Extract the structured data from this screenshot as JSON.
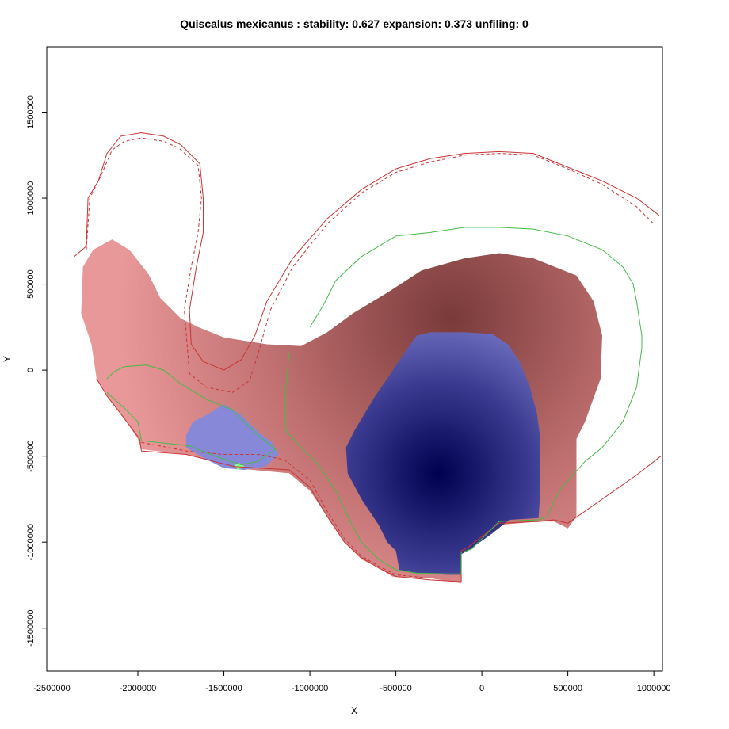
{
  "chart_data": {
    "type": "heatmap",
    "title": "Quiscalus mexicanus : stability: 0.627 expansion: 0.373 unfiling: 0",
    "xlabel": "X",
    "ylabel": "Y",
    "xlim": [
      -2530000,
      1050000
    ],
    "ylim": [
      -1750000,
      1880000
    ],
    "x_ticks": [
      -2500000,
      -2000000,
      -1500000,
      -1000000,
      -500000,
      0,
      500000,
      1000000
    ],
    "x_tick_labels": [
      "-2500000",
      "-2000000",
      "-1500000",
      "-1000000",
      "-500000",
      "0",
      "500000",
      "1000000"
    ],
    "y_ticks": [
      -1500000,
      -1000000,
      -500000,
      0,
      500000,
      1000000,
      1500000
    ],
    "y_tick_labels": [
      "-1500000",
      "-1000000",
      "-500000",
      "0",
      "500000",
      "1000000",
      "1500000"
    ],
    "grid": false,
    "colors": {
      "expansion_fill": "#e89898",
      "expansion_dark": "#7a3a3a",
      "stability_fill": "#8888d8",
      "stability_dark": "#000050",
      "unfilling_fill": "#88ff88",
      "native_contour": "#cc3333",
      "invasive_contour": "#44bb44"
    },
    "layers": {
      "expansion_region": [
        [
          -2240000,
          -50000
        ],
        [
          -2180000,
          -150000
        ],
        [
          -2080000,
          -280000
        ],
        [
          -2000000,
          -400000
        ],
        [
          -1980000,
          -460000
        ],
        [
          -1720000,
          -490000
        ],
        [
          -1520000,
          -540000
        ],
        [
          -1440000,
          -570000
        ],
        [
          -1120000,
          -600000
        ],
        [
          -1000000,
          -700000
        ],
        [
          -900000,
          -850000
        ],
        [
          -800000,
          -1000000
        ],
        [
          -700000,
          -1100000
        ],
        [
          -600000,
          -1150000
        ],
        [
          -520000,
          -1200000
        ],
        [
          -300000,
          -1210000
        ],
        [
          -120000,
          -1240000
        ],
        [
          -120000,
          -1050000
        ],
        [
          -60000,
          -1000000
        ],
        [
          100000,
          -900000
        ],
        [
          330000,
          -880000
        ],
        [
          420000,
          -880000
        ],
        [
          500000,
          -920000
        ],
        [
          550000,
          -850000
        ],
        [
          550000,
          -400000
        ],
        [
          600000,
          -300000
        ],
        [
          690000,
          -50000
        ],
        [
          700000,
          200000
        ],
        [
          650000,
          400000
        ],
        [
          550000,
          550000
        ],
        [
          300000,
          650000
        ],
        [
          100000,
          680000
        ],
        [
          -100000,
          650000
        ],
        [
          -350000,
          580000
        ],
        [
          -550000,
          450000
        ],
        [
          -750000,
          330000
        ],
        [
          -900000,
          220000
        ],
        [
          -1050000,
          140000
        ],
        [
          -1250000,
          150000
        ],
        [
          -1500000,
          190000
        ],
        [
          -1650000,
          250000
        ],
        [
          -1750000,
          300000
        ],
        [
          -1870000,
          420000
        ],
        [
          -1940000,
          560000
        ],
        [
          -2050000,
          700000
        ],
        [
          -2150000,
          760000
        ],
        [
          -2260000,
          700000
        ],
        [
          -2320000,
          600000
        ],
        [
          -2330000,
          330000
        ],
        [
          -2270000,
          150000
        ]
      ],
      "stability_main": [
        [
          -790000,
          -450000
        ],
        [
          -780000,
          -600000
        ],
        [
          -700000,
          -750000
        ],
        [
          -600000,
          -900000
        ],
        [
          -550000,
          -1000000
        ],
        [
          -500000,
          -1050000
        ],
        [
          -480000,
          -1160000
        ],
        [
          -400000,
          -1180000
        ],
        [
          -200000,
          -1190000
        ],
        [
          -120000,
          -1190000
        ],
        [
          -120000,
          -1070000
        ],
        [
          -80000,
          -1050000
        ],
        [
          60000,
          -950000
        ],
        [
          160000,
          -870000
        ],
        [
          330000,
          -860000
        ],
        [
          340000,
          -700000
        ],
        [
          340000,
          -400000
        ],
        [
          320000,
          -250000
        ],
        [
          280000,
          -100000
        ],
        [
          220000,
          50000
        ],
        [
          150000,
          150000
        ],
        [
          60000,
          210000
        ],
        [
          -100000,
          220000
        ],
        [
          -300000,
          220000
        ],
        [
          -380000,
          200000
        ],
        [
          -450000,
          100000
        ],
        [
          -550000,
          -50000
        ],
        [
          -620000,
          -150000
        ],
        [
          -680000,
          -250000
        ],
        [
          -740000,
          -350000
        ]
      ],
      "stability_small": [
        [
          -1720000,
          -380000
        ],
        [
          -1720000,
          -450000
        ],
        [
          -1600000,
          -520000
        ],
        [
          -1500000,
          -570000
        ],
        [
          -1380000,
          -580000
        ],
        [
          -1260000,
          -560000
        ],
        [
          -1180000,
          -490000
        ],
        [
          -1220000,
          -420000
        ],
        [
          -1300000,
          -360000
        ],
        [
          -1400000,
          -260000
        ],
        [
          -1500000,
          -200000
        ],
        [
          -1600000,
          -260000
        ],
        [
          -1680000,
          -300000
        ]
      ],
      "unfilling_small": [
        [
          -1440000,
          -550000
        ],
        [
          -1420000,
          -580000
        ],
        [
          -1380000,
          -560000
        ],
        [
          -1410000,
          -540000
        ]
      ],
      "native_contour_outer": [
        [
          -2370000,
          660000
        ],
        [
          -2300000,
          720000
        ],
        [
          -2290000,
          1000000
        ],
        [
          -2230000,
          1100000
        ],
        [
          -2180000,
          1260000
        ],
        [
          -2100000,
          1360000
        ],
        [
          -1980000,
          1380000
        ],
        [
          -1850000,
          1360000
        ],
        [
          -1750000,
          1310000
        ],
        [
          -1640000,
          1200000
        ],
        [
          -1620000,
          1000000
        ],
        [
          -1620000,
          800000
        ],
        [
          -1660000,
          600000
        ],
        [
          -1700000,
          350000
        ],
        [
          -1690000,
          150000
        ],
        [
          -1620000,
          50000
        ],
        [
          -1500000,
          0
        ],
        [
          -1400000,
          60000
        ],
        [
          -1320000,
          200000
        ],
        [
          -1250000,
          400000
        ],
        [
          -1100000,
          650000
        ],
        [
          -900000,
          880000
        ],
        [
          -700000,
          1050000
        ],
        [
          -500000,
          1170000
        ],
        [
          -300000,
          1230000
        ],
        [
          -100000,
          1260000
        ],
        [
          100000,
          1270000
        ],
        [
          300000,
          1260000
        ],
        [
          500000,
          1180000
        ],
        [
          700000,
          1100000
        ],
        [
          900000,
          1000000
        ],
        [
          1030000,
          900000
        ]
      ],
      "native_contour_inner_dashed": [
        [
          -2300000,
          700000
        ],
        [
          -2280000,
          1000000
        ],
        [
          -2220000,
          1120000
        ],
        [
          -2150000,
          1280000
        ],
        [
          -2080000,
          1330000
        ],
        [
          -1980000,
          1350000
        ],
        [
          -1850000,
          1330000
        ],
        [
          -1760000,
          1290000
        ],
        [
          -1650000,
          1190000
        ],
        [
          -1630000,
          1000000
        ],
        [
          -1650000,
          800000
        ],
        [
          -1690000,
          600000
        ],
        [
          -1730000,
          350000
        ],
        [
          -1700000,
          -20000
        ],
        [
          -1600000,
          -100000
        ],
        [
          -1450000,
          -130000
        ],
        [
          -1350000,
          -60000
        ],
        [
          -1300000,
          100000
        ],
        [
          -1230000,
          350000
        ],
        [
          -1100000,
          600000
        ],
        [
          -900000,
          850000
        ],
        [
          -700000,
          1030000
        ],
        [
          -500000,
          1150000
        ],
        [
          -300000,
          1210000
        ],
        [
          -100000,
          1250000
        ],
        [
          100000,
          1260000
        ],
        [
          300000,
          1250000
        ],
        [
          500000,
          1170000
        ],
        [
          700000,
          1080000
        ],
        [
          900000,
          950000
        ],
        [
          1000000,
          850000
        ]
      ],
      "native_contour_lower": [
        [
          -2240000,
          -50000
        ],
        [
          -2180000,
          -150000
        ],
        [
          -2080000,
          -280000
        ],
        [
          -1990000,
          -400000
        ],
        [
          -1980000,
          -470000
        ],
        [
          -1720000,
          -490000
        ],
        [
          -1520000,
          -540000
        ],
        [
          -1440000,
          -560000
        ],
        [
          -1120000,
          -580000
        ],
        [
          -1000000,
          -680000
        ],
        [
          -900000,
          -850000
        ],
        [
          -800000,
          -1000000
        ],
        [
          -700000,
          -1090000
        ],
        [
          -600000,
          -1150000
        ],
        [
          -500000,
          -1200000
        ],
        [
          -300000,
          -1220000
        ],
        [
          -120000,
          -1230000
        ],
        [
          -120000,
          -1050000
        ],
        [
          -80000,
          -1030000
        ],
        [
          100000,
          -890000
        ],
        [
          330000,
          -880000
        ],
        [
          420000,
          -870000
        ],
        [
          500000,
          -890000
        ],
        [
          700000,
          -750000
        ],
        [
          900000,
          -610000
        ],
        [
          1040000,
          -500000
        ]
      ],
      "native_contour_lower_dashed": [
        [
          -1980000,
          -420000
        ],
        [
          -1720000,
          -470000
        ],
        [
          -1500000,
          -490000
        ],
        [
          -1300000,
          -490000
        ],
        [
          -1150000,
          -520000
        ],
        [
          -1000000,
          -640000
        ],
        [
          -900000,
          -820000
        ],
        [
          -800000,
          -980000
        ],
        [
          -700000,
          -1080000
        ],
        [
          -600000,
          -1140000
        ],
        [
          -500000,
          -1190000
        ],
        [
          -300000,
          -1210000
        ]
      ],
      "invasive_contour_outer": [
        [
          -1120000,
          100000
        ],
        [
          -1140000,
          -100000
        ],
        [
          -1140000,
          -350000
        ],
        [
          -1050000,
          -450000
        ],
        [
          -950000,
          -550000
        ],
        [
          -850000,
          -700000
        ],
        [
          -780000,
          -850000
        ],
        [
          -700000,
          -1000000
        ],
        [
          -600000,
          -1100000
        ],
        [
          -500000,
          -1160000
        ],
        [
          -380000,
          -1180000
        ],
        [
          -200000,
          -1185000
        ],
        [
          -120000,
          -1185000
        ],
        [
          -120000,
          -1060000
        ],
        [
          -60000,
          -1040000
        ],
        [
          100000,
          -880000
        ],
        [
          330000,
          -870000
        ],
        [
          380000,
          -850000
        ],
        [
          450000,
          -700000
        ],
        [
          600000,
          -530000
        ],
        [
          700000,
          -450000
        ],
        [
          820000,
          -300000
        ],
        [
          900000,
          -100000
        ],
        [
          930000,
          130000
        ],
        [
          930000,
          200000
        ],
        [
          900000,
          400000
        ],
        [
          880000,
          500000
        ],
        [
          820000,
          600000
        ],
        [
          700000,
          700000
        ],
        [
          500000,
          780000
        ],
        [
          300000,
          820000
        ],
        [
          100000,
          830000
        ],
        [
          -100000,
          830000
        ],
        [
          -300000,
          800000
        ],
        [
          -500000,
          780000
        ],
        [
          -700000,
          660000
        ],
        [
          -850000,
          520000
        ],
        [
          -920000,
          380000
        ],
        [
          -1000000,
          250000
        ]
      ],
      "invasive_contour_small": [
        [
          -2180000,
          -50000
        ],
        [
          -2140000,
          -10000
        ],
        [
          -2080000,
          20000
        ],
        [
          -1950000,
          30000
        ],
        [
          -1850000,
          0
        ],
        [
          -1750000,
          -80000
        ],
        [
          -1600000,
          -170000
        ],
        [
          -1450000,
          -230000
        ],
        [
          -1300000,
          -380000
        ],
        [
          -1200000,
          -460000
        ],
        [
          -1300000,
          -530000
        ],
        [
          -1400000,
          -550000
        ],
        [
          -1550000,
          -500000
        ],
        [
          -1700000,
          -440000
        ],
        [
          -1980000,
          -410000
        ],
        [
          -2000000,
          -300000
        ],
        [
          -2080000,
          -220000
        ],
        [
          -2180000,
          -130000
        ]
      ]
    }
  }
}
